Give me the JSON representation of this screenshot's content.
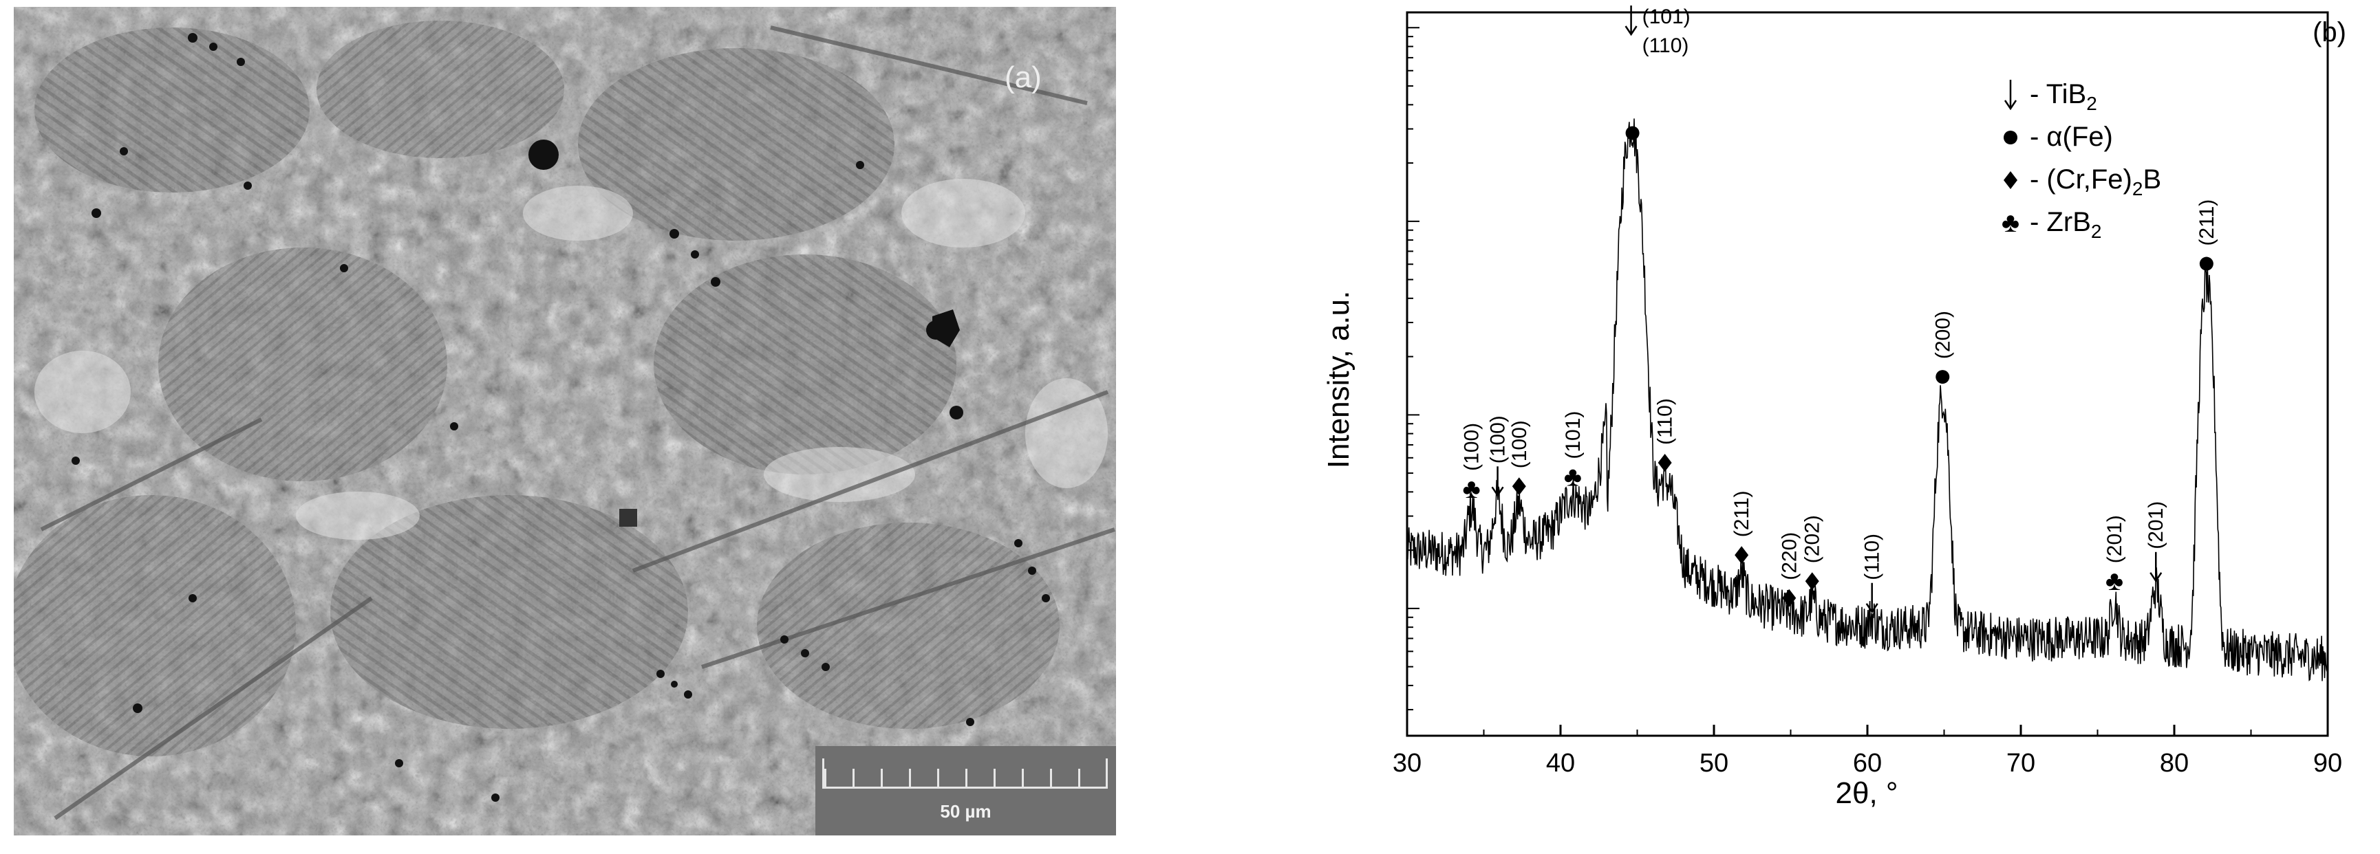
{
  "micrograph": {
    "panel_label": "(a)",
    "scale_bar_label": "50 µm"
  },
  "xrd": {
    "panel_label": "(b)"
  },
  "chart_data": {
    "type": "line",
    "xlabel": "2θ, °",
    "ylabel": "Intensity, a.u.",
    "xlim": [
      30,
      90
    ],
    "x_ticks": [
      30,
      40,
      50,
      60,
      70,
      80,
      90
    ],
    "y_scale": "log",
    "y_tick_labels": "none",
    "legend": {
      "placement": "top-center",
      "entries": [
        {
          "marker": "arrow",
          "label_main": "- TiB",
          "label_sub": "2",
          "label_after": ""
        },
        {
          "marker": "circle",
          "label_main": "- α(Fe)",
          "label_sub": "",
          "label_after": ""
        },
        {
          "marker": "diamond",
          "label_main": "- (Cr,Fe)",
          "label_sub": "2",
          "label_after": "B"
        },
        {
          "marker": "club",
          "label_main": "- ZrB",
          "label_sub": "2",
          "label_after": ""
        }
      ]
    },
    "peaks": [
      {
        "x": 34.2,
        "y": 33,
        "width": 0.25,
        "phase": "ZrB2",
        "label": "(100)"
      },
      {
        "x": 35.9,
        "y": 36,
        "width": 0.25,
        "phase": "TiB2",
        "label": "(100)"
      },
      {
        "x": 37.3,
        "y": 34,
        "width": 0.25,
        "phase": "(Cr,Fe)2B",
        "label": "(100)"
      },
      {
        "x": 40.8,
        "y": 38,
        "width": 0.6,
        "phase": "ZrB2",
        "label": "(101)"
      },
      {
        "x": 44.6,
        "y": 3000,
        "width": 0.45,
        "phase": "TiB2+α(Fe)",
        "label": "(101)/(110)"
      },
      {
        "x": 46.8,
        "y": 45,
        "width": 0.5,
        "phase": "(Cr,Fe)2B",
        "label": "(110)"
      },
      {
        "x": 51.8,
        "y": 15,
        "width": 0.2,
        "phase": "(Cr,Fe)2B",
        "label": "(211)"
      },
      {
        "x": 54.9,
        "y": 9,
        "width": 0.2,
        "phase": "(Cr,Fe)2B",
        "label": "(220)"
      },
      {
        "x": 56.4,
        "y": 11,
        "width": 0.2,
        "phase": "(Cr,Fe)2B",
        "label": "(202)"
      },
      {
        "x": 60.3,
        "y": 9,
        "width": 0.2,
        "phase": "TiB2",
        "label": "(110)"
      },
      {
        "x": 64.9,
        "y": 125,
        "width": 0.3,
        "phase": "α(Fe)",
        "label": "(200)"
      },
      {
        "x": 76.1,
        "y": 11,
        "width": 0.2,
        "phase": "ZrB2",
        "label": "(201)"
      },
      {
        "x": 78.8,
        "y": 13,
        "width": 0.25,
        "phase": "TiB2",
        "label": "(201)"
      },
      {
        "x": 82.1,
        "y": 480,
        "width": 0.3,
        "phase": "α(Fe)",
        "label": "(211)"
      }
    ],
    "background_level": {
      "x": [
        30,
        34,
        38,
        42,
        44,
        48,
        52,
        56,
        60,
        64,
        70,
        76,
        80,
        84,
        90
      ],
      "y": [
        20,
        19,
        22,
        30,
        200,
        16,
        11,
        9,
        8,
        8,
        7,
        7,
        6.5,
        6,
        5.5
      ]
    }
  }
}
